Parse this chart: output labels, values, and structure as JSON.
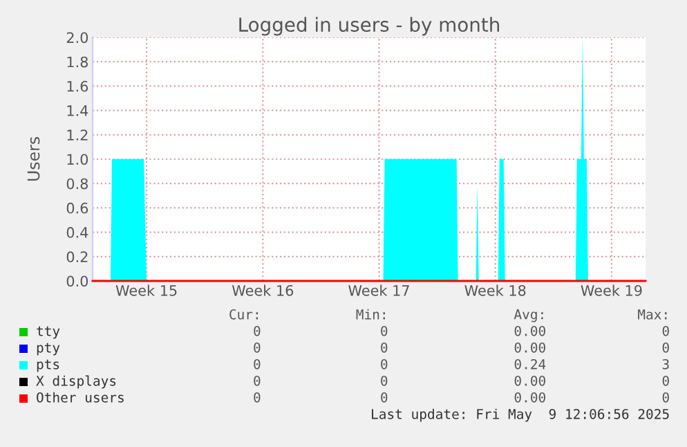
{
  "chart_data": {
    "type": "area",
    "title": "Logged in users - by month",
    "ylabel": "Users",
    "xlim": [
      "2025-04-07T06:00",
      "2025-05-10T13:00"
    ],
    "xticks": [
      {
        "value": "2025-04-10T12:00",
        "label": "Week 15"
      },
      {
        "value": "2025-04-17T12:00",
        "label": "Week 16"
      },
      {
        "value": "2025-04-24T12:00",
        "label": "Week 17"
      },
      {
        "value": "2025-05-01T12:00",
        "label": "Week 18"
      },
      {
        "value": "2025-05-08T12:00",
        "label": "Week 19"
      }
    ],
    "ylim": [
      0,
      2.0
    ],
    "yticks": [
      {
        "value": 0,
        "label": "0.0"
      },
      {
        "value": 0.2,
        "label": "0.2"
      },
      {
        "value": 0.4,
        "label": "0.4"
      },
      {
        "value": 0.6,
        "label": "0.6"
      },
      {
        "value": 0.8,
        "label": "0.8"
      },
      {
        "value": 1.0,
        "label": "1.0"
      },
      {
        "value": 1.2,
        "label": "1.2"
      },
      {
        "value": 1.4,
        "label": "1.4"
      },
      {
        "value": 1.6,
        "label": "1.6"
      },
      {
        "value": 1.8,
        "label": "1.8"
      },
      {
        "value": 2.0,
        "label": "2.0"
      }
    ],
    "grid": true,
    "legend": "bottom",
    "series": [
      {
        "name": "tty",
        "type": "line",
        "color": "#00cc00"
      },
      {
        "name": "pty",
        "type": "line",
        "color": "#0000ff"
      },
      {
        "name": "pts",
        "color": "#00ffff",
        "x": [
          "2025-04-07T06:00",
          "2025-04-08T08:00",
          "2025-04-08T10:00",
          "2025-04-10T08:00",
          "2025-04-10T12:00",
          "2025-04-24T18:00",
          "2025-04-24T20:00",
          "2025-04-29T04:00",
          "2025-04-29T06:00",
          "2025-04-30T08:00",
          "2025-04-30T10:00",
          "2025-04-30T12:00",
          "2025-05-01T16:00",
          "2025-05-01T18:00",
          "2025-05-02T00:00",
          "2025-05-02T02:00",
          "2025-05-06T08:00",
          "2025-05-06T10:00",
          "2025-05-06T16:00",
          "2025-05-06T18:00",
          "2025-05-06T20:00",
          "2025-05-07T00:00",
          "2025-05-07T02:00",
          "2025-05-10T13:00"
        ],
        "values": [
          0,
          0,
          1,
          1,
          0,
          0,
          1,
          1,
          0,
          0,
          0.8,
          0,
          0,
          1,
          1,
          0,
          0,
          1,
          1,
          2,
          1,
          1,
          0,
          0
        ]
      },
      {
        "name": "X displays",
        "type": "line",
        "color": "#000000"
      },
      {
        "name": "Other users",
        "type": "line",
        "color": "#ff0000",
        "x": [
          "2025-04-07T06:00",
          "2025-05-10T13:00"
        ],
        "values": [
          0,
          0
        ]
      }
    ],
    "annotations": [
      "Cur:",
      "Min:",
      "Avg:",
      "Max:",
      "0",
      "0",
      "0.00",
      "0",
      "0",
      "0",
      "0.00",
      "0",
      "0",
      "0",
      "0.24",
      "3",
      "0",
      "0",
      "0.00",
      "0",
      "0",
      "0",
      "0.00",
      "0",
      "Last update: Fri May  9 12:06:56 2025"
    ]
  }
}
